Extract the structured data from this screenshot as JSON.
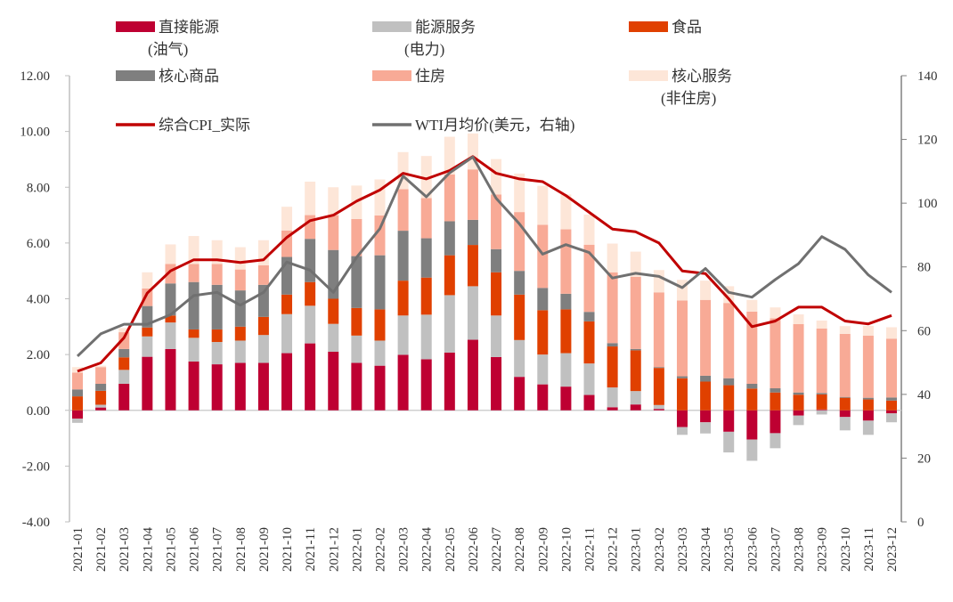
{
  "chart_data": {
    "type": "bar",
    "stacked": true,
    "categories": [
      "2021-01",
      "2021-02",
      "2021-03",
      "2021-04",
      "2021-05",
      "2021-06",
      "2021-07",
      "2021-08",
      "2021-09",
      "2021-10",
      "2021-11",
      "2021-12",
      "2022-01",
      "2022-02",
      "2022-03",
      "2022-04",
      "2022-05",
      "2022-06",
      "2022-07",
      "2022-08",
      "2022-09",
      "2022-10",
      "2022-11",
      "2022-12",
      "2023-01",
      "2023-02",
      "2023-03",
      "2023-04",
      "2023-05",
      "2023-06",
      "2023-07",
      "2023-08",
      "2023-09",
      "2023-10",
      "2023-11",
      "2023-12"
    ],
    "series": [
      {
        "name": "直接能源",
        "name_line2": "(油气)",
        "color": "#BE0032",
        "kind": "bar",
        "values": [
          -0.3,
          0.1,
          0.95,
          1.92,
          2.2,
          1.75,
          1.65,
          1.7,
          1.7,
          2.05,
          2.4,
          2.1,
          1.7,
          1.6,
          1.99,
          1.83,
          2.07,
          2.53,
          1.91,
          1.2,
          0.93,
          0.85,
          0.55,
          0.11,
          0.21,
          0.05,
          -0.6,
          -0.43,
          -0.77,
          -1.05,
          -0.82,
          -0.19,
          0.03,
          -0.24,
          -0.37,
          -0.11
        ]
      },
      {
        "name": "能源服务",
        "name_line2": "(电力)",
        "color": "#C0C0C0",
        "kind": "bar",
        "values": [
          -0.15,
          0.1,
          0.5,
          0.73,
          0.95,
          0.85,
          0.8,
          0.8,
          1.0,
          1.4,
          1.35,
          1.0,
          0.98,
          0.9,
          1.41,
          1.6,
          2.06,
          1.92,
          1.49,
          1.32,
          1.07,
          1.2,
          1.13,
          0.71,
          0.48,
          0.14,
          -0.28,
          -0.4,
          -0.74,
          -0.76,
          -0.54,
          -0.34,
          -0.15,
          -0.48,
          -0.51,
          -0.32
        ]
      },
      {
        "name": "食品",
        "name_line2": "",
        "color": "#E04000",
        "kind": "bar",
        "values": [
          0.5,
          0.5,
          0.45,
          0.32,
          0.25,
          0.3,
          0.45,
          0.5,
          0.65,
          0.7,
          0.85,
          0.9,
          0.99,
          1.12,
          1.25,
          1.33,
          1.43,
          1.48,
          1.55,
          1.63,
          1.59,
          1.57,
          1.51,
          1.47,
          1.46,
          1.33,
          1.15,
          1.03,
          0.9,
          0.78,
          0.64,
          0.56,
          0.54,
          0.45,
          0.39,
          0.35
        ]
      },
      {
        "name": "核心商品",
        "name_line2": "",
        "color": "#7F7F7F",
        "kind": "bar",
        "values": [
          0.25,
          0.25,
          0.3,
          0.77,
          1.15,
          1.7,
          1.6,
          1.3,
          1.15,
          1.35,
          1.55,
          1.75,
          1.86,
          1.94,
          1.79,
          1.41,
          1.22,
          0.9,
          0.83,
          0.85,
          0.8,
          0.56,
          0.34,
          0.12,
          0.05,
          0.03,
          0.07,
          0.21,
          0.25,
          0.17,
          0.15,
          0.08,
          0.05,
          0.03,
          0.06,
          0.11
        ]
      },
      {
        "name": "住房",
        "name_line2": "",
        "color": "#F8AA96",
        "kind": "bar",
        "values": [
          0.6,
          0.6,
          0.6,
          0.63,
          0.7,
          0.65,
          0.75,
          0.75,
          0.7,
          0.95,
          0.85,
          1.25,
          1.33,
          1.43,
          1.49,
          1.44,
          1.68,
          1.81,
          1.96,
          2.11,
          2.26,
          2.31,
          2.41,
          2.54,
          2.59,
          2.68,
          2.72,
          2.72,
          2.7,
          2.59,
          2.51,
          2.45,
          2.31,
          2.26,
          2.23,
          2.11
        ]
      },
      {
        "name": "核心服务",
        "name_line2": "(非住房)",
        "color": "#FDE6D8",
        "kind": "bar",
        "values": [
          0.2,
          0.05,
          0.15,
          0.58,
          0.7,
          1.0,
          0.85,
          0.8,
          0.9,
          0.85,
          1.2,
          1.0,
          1.2,
          1.29,
          1.33,
          1.51,
          1.35,
          1.29,
          1.27,
          1.38,
          1.4,
          1.25,
          1.08,
          1.03,
          0.9,
          0.8,
          0.74,
          0.69,
          0.6,
          0.42,
          0.39,
          0.35,
          0.29,
          0.28,
          0.35,
          0.41
        ]
      },
      {
        "name": "综合CPI_实际",
        "name_line2": "",
        "color": "#C00000",
        "kind": "line",
        "axis": "left",
        "values": [
          1.4,
          1.7,
          2.6,
          4.2,
          5.0,
          5.4,
          5.4,
          5.3,
          5.4,
          6.2,
          6.8,
          7.0,
          7.5,
          7.9,
          8.5,
          8.3,
          8.6,
          9.1,
          8.5,
          8.3,
          8.2,
          7.7,
          7.1,
          6.5,
          6.4,
          6.0,
          5.0,
          4.9,
          4.0,
          3.0,
          3.2,
          3.7,
          3.7,
          3.2,
          3.1,
          3.4
        ]
      },
      {
        "name": "WTI月均价(美元，右轴)",
        "name_line2": "",
        "color": "#707070",
        "kind": "line",
        "axis": "right",
        "values": [
          52,
          59,
          62,
          62,
          65,
          71,
          72,
          68,
          72,
          81.5,
          79,
          72,
          83,
          92,
          108.5,
          102,
          109.5,
          114.5,
          101.5,
          93.5,
          84,
          87,
          84.5,
          76.5,
          78,
          77,
          73.5,
          79.5,
          72,
          70.5,
          76,
          81,
          89.5,
          85.5,
          77.5,
          72
        ]
      }
    ],
    "y_left": {
      "range": [
        -4,
        12
      ],
      "ticks": [
        "-4.00",
        "-2.00",
        "0.00",
        "2.00",
        "4.00",
        "6.00",
        "8.00",
        "10.00",
        "12.00"
      ]
    },
    "y_right": {
      "range": [
        0,
        140
      ],
      "ticks": [
        "0",
        "20",
        "40",
        "60",
        "80",
        "100",
        "120",
        "140"
      ]
    },
    "grid": false,
    "legend": "top"
  }
}
